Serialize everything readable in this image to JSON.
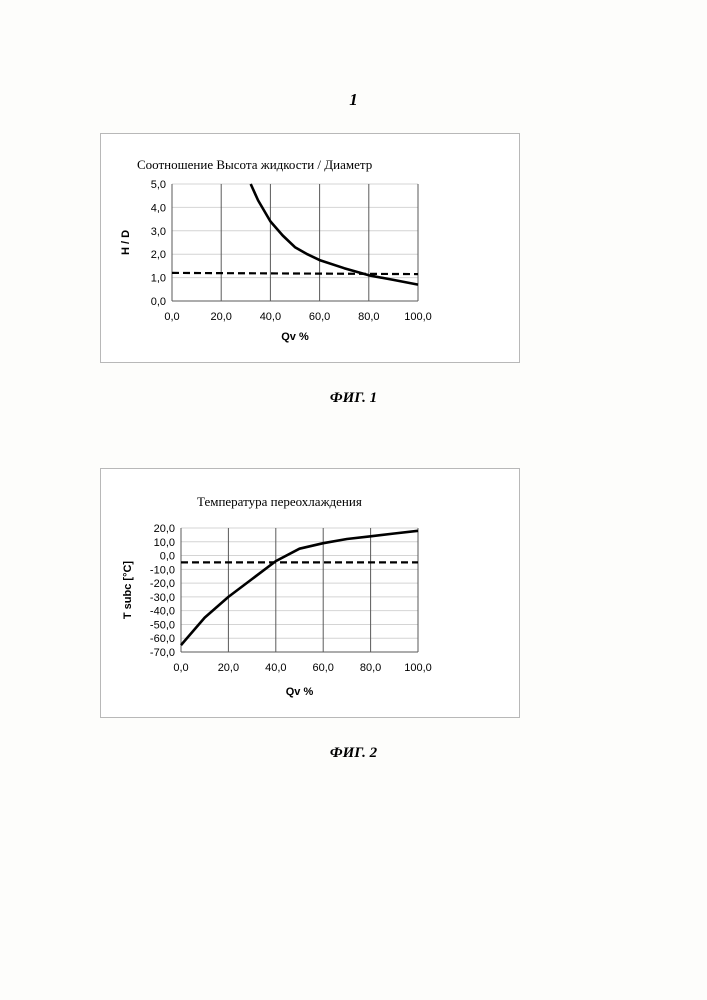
{
  "page": {
    "number": "1"
  },
  "figures": [
    {
      "caption": "ФИГ. 1"
    },
    {
      "caption": "ФИГ. 2"
    }
  ],
  "chart_data": [
    {
      "type": "line",
      "title": "Соотношение Высота жидкости / Диаметр",
      "xlabel": "Qv %",
      "ylabel": "H / D",
      "xlim": [
        0,
        100
      ],
      "ylim": [
        0,
        5
      ],
      "xticks": [
        "0,0",
        "20,0",
        "40,0",
        "60,0",
        "80,0",
        "100,0"
      ],
      "yticks": [
        "5,0",
        "4,0",
        "3,0",
        "2,0",
        "1,0",
        "0,0"
      ],
      "grid": "vertical",
      "series": [
        {
          "style": "solid",
          "color": "#000000",
          "x": [
            32,
            35,
            40,
            45,
            50,
            55,
            60,
            70,
            80,
            90,
            100
          ],
          "y": [
            5.0,
            4.3,
            3.4,
            2.8,
            2.3,
            2.0,
            1.75,
            1.4,
            1.1,
            0.9,
            0.7
          ]
        },
        {
          "style": "dashed",
          "color": "#000000",
          "x": [
            0,
            100
          ],
          "y": [
            1.2,
            1.15
          ]
        }
      ]
    },
    {
      "type": "line",
      "title": "Температура переохлаждения",
      "xlabel": "Qv %",
      "ylabel": "T subc [°C]",
      "xlim": [
        0,
        100
      ],
      "ylim": [
        -70,
        20
      ],
      "xticks": [
        "0,0",
        "20,0",
        "40,0",
        "60,0",
        "80,0",
        "100,0"
      ],
      "yticks": [
        "20,0",
        "10,0",
        "0,0",
        "-10,0",
        "-20,0",
        "-30,0",
        "-40,0",
        "-50,0",
        "-60,0",
        "-70,0"
      ],
      "grid": "vertical",
      "series": [
        {
          "style": "solid",
          "color": "#000000",
          "x": [
            0,
            10,
            20,
            30,
            40,
            50,
            60,
            70,
            80,
            90,
            100
          ],
          "y": [
            -65,
            -45,
            -30,
            -17,
            -4,
            5,
            9,
            12,
            14,
            16,
            18
          ]
        },
        {
          "style": "dashed",
          "color": "#000000",
          "x": [
            0,
            100
          ],
          "y": [
            -5,
            -5
          ]
        }
      ]
    }
  ]
}
